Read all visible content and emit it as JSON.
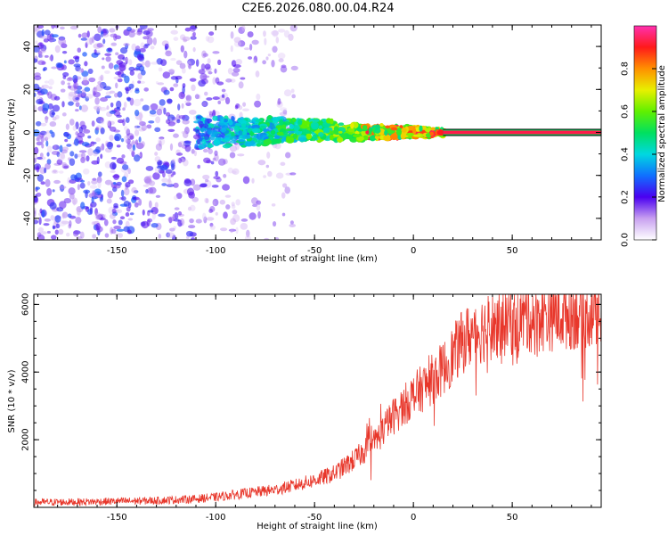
{
  "figure": {
    "title": "C2E6.2026.080.00.04.R24"
  },
  "chart_data": [
    {
      "type": "heatmap",
      "name": "spectrogram",
      "xlabel": "Height of straight line (km)",
      "ylabel": "Frequency (Hz)",
      "xlim": [
        -192,
        95
      ],
      "ylim": [
        -50,
        50
      ],
      "xticks": [
        -150,
        -100,
        -50,
        0,
        50
      ],
      "yticks": [
        -40,
        -20,
        0,
        20,
        40
      ],
      "grid": false,
      "colorbar": {
        "label": "Normalized spectral amplitude",
        "range": [
          0,
          1
        ],
        "ticks": [
          0.0,
          0.2,
          0.4,
          0.6,
          0.8
        ]
      },
      "features": {
        "noise_region_km": [
          -192,
          -70
        ],
        "signal_onset_km": -110,
        "clean_tone_start_km": 15,
        "tone_frequency_hz": 0
      }
    },
    {
      "type": "line",
      "name": "snr",
      "xlabel": "Height of straight line (km)",
      "ylabel": "SNR (10 * v/v)",
      "xlim": [
        -192,
        95
      ],
      "ylim": [
        0,
        6300
      ],
      "xticks": [
        -150,
        -100,
        -50,
        0,
        50
      ],
      "yticks": [
        2000,
        4000,
        6000
      ],
      "color": "#e8372b",
      "series": [
        {
          "name": "SNR",
          "x": [
            -192,
            -170,
            -150,
            -130,
            -110,
            -100,
            -90,
            -80,
            -70,
            -60,
            -50,
            -40,
            -35,
            -30,
            -25,
            -20,
            -15,
            -10,
            -5,
            0,
            5,
            10,
            15,
            20,
            25,
            30,
            40,
            50,
            60,
            70,
            80,
            90,
            95
          ],
          "y": [
            150,
            160,
            180,
            200,
            250,
            300,
            380,
            450,
            520,
            650,
            800,
            1000,
            1200,
            1400,
            1650,
            1900,
            2300,
            2700,
            3000,
            3300,
            3550,
            3800,
            4100,
            4500,
            4900,
            5150,
            5400,
            5550,
            5650,
            5700,
            5750,
            5800,
            5800
          ]
        }
      ]
    }
  ]
}
